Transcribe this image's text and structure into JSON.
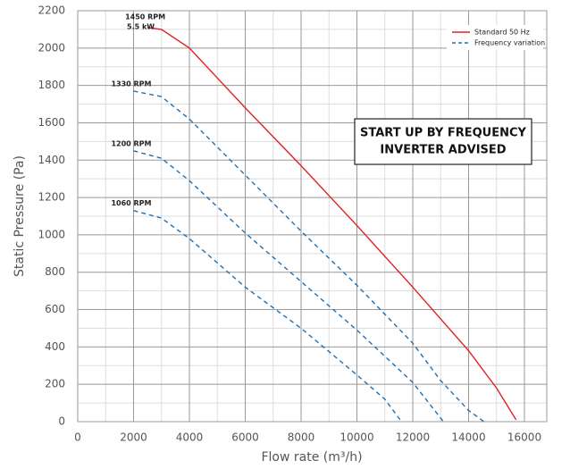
{
  "chart_data": {
    "type": "line",
    "xlabel": "Flow rate (m³/h)",
    "ylabel": "Static Pressure (Pa)",
    "xlim": [
      0,
      16800
    ],
    "xticks": [
      0,
      2000,
      4000,
      6000,
      8000,
      10000,
      12000,
      14000,
      16000
    ],
    "ylim": [
      0,
      2200
    ],
    "yticks": [
      0,
      200,
      400,
      600,
      800,
      1000,
      1200,
      1400,
      1600,
      1800,
      2000,
      2200
    ],
    "grid": true,
    "minor_grid": true,
    "legend_position": "upper right",
    "series": [
      {
        "label": "1450 RPM",
        "sublabel": "5.5 kW",
        "color": "#e31e24",
        "dashed": false,
        "x": [
          2500,
          3000,
          4000,
          6000,
          8000,
          10000,
          12000,
          14000,
          15000,
          15700
        ],
        "values": [
          2110,
          2100,
          2000,
          1680,
          1370,
          1050,
          720,
          380,
          180,
          10
        ]
      },
      {
        "label": "1330 RPM",
        "color": "#1f6fb2",
        "dashed": true,
        "x": [
          2000,
          3000,
          4000,
          6000,
          8000,
          10000,
          12000,
          13000,
          14000,
          14550
        ],
        "values": [
          1770,
          1740,
          1620,
          1320,
          1020,
          730,
          420,
          220,
          60,
          0
        ]
      },
      {
        "label": "1200 RPM",
        "color": "#1f6fb2",
        "dashed": true,
        "x": [
          2000,
          3000,
          4000,
          6000,
          8000,
          10000,
          12000,
          13100
        ],
        "values": [
          1450,
          1410,
          1290,
          1010,
          750,
          490,
          210,
          0
        ]
      },
      {
        "label": "1060 RPM",
        "color": "#1f6fb2",
        "dashed": true,
        "x": [
          2000,
          3000,
          4000,
          6000,
          8000,
          10000,
          11000,
          11600
        ],
        "values": [
          1130,
          1090,
          980,
          720,
          500,
          250,
          120,
          0
        ]
      }
    ],
    "legend": [
      {
        "name": "Standard 50 Hz",
        "color": "#e31e24",
        "dashed": false
      },
      {
        "name": "Frequency variation",
        "color": "#1f6fb2",
        "dashed": true
      }
    ],
    "annotation": [
      "START UP BY FREQUENCY",
      "INVERTER ADVISED"
    ]
  }
}
